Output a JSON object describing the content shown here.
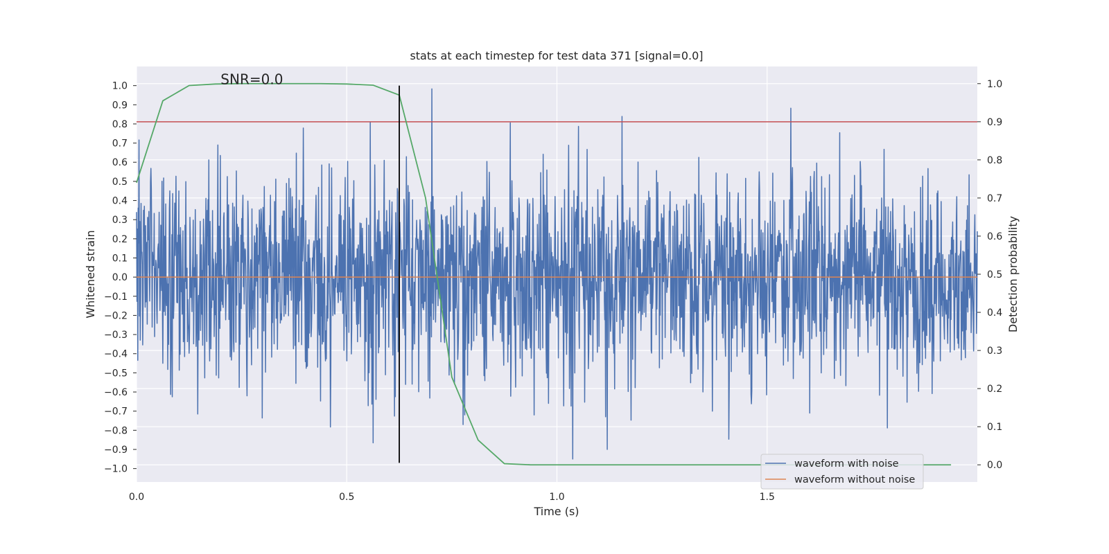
{
  "chart_data": {
    "type": "line",
    "title": "stats at each timestep for test data 371 [signal=0.0]",
    "xlabel": "Time (s)",
    "ylabel": "Whitened strain",
    "y2label": "Detection probability",
    "xlim": [
      0.0,
      2.0
    ],
    "ylim": [
      -1.07,
      1.1
    ],
    "y2lim": [
      -0.045,
      1.045
    ],
    "xticks": [
      0.0,
      0.5,
      1.0,
      1.5
    ],
    "xtick_labels": [
      "0.0",
      "0.5",
      "1.0",
      "1.5"
    ],
    "yticks": [
      -1.0,
      -0.9,
      -0.8,
      -0.7,
      -0.6,
      -0.5,
      -0.4,
      -0.3,
      -0.2,
      -0.1,
      0.0,
      0.1,
      0.2,
      0.3,
      0.4,
      0.5,
      0.6,
      0.7,
      0.8,
      0.9,
      1.0
    ],
    "ytick_labels": [
      "−1.0",
      "−0.9",
      "−0.8",
      "−0.7",
      "−0.6",
      "−0.5",
      "−0.4",
      "−0.3",
      "−0.2",
      "−0.1",
      "0.0",
      "0.1",
      "0.2",
      "0.3",
      "0.4",
      "0.5",
      "0.6",
      "0.7",
      "0.8",
      "0.9",
      "1.0"
    ],
    "y2ticks": [
      0.0,
      0.1,
      0.2,
      0.3,
      0.4,
      0.5,
      0.6,
      0.7,
      0.8,
      0.9,
      1.0
    ],
    "y2tick_labels": [
      "0.0",
      "0.1",
      "0.2",
      "0.3",
      "0.4",
      "0.5",
      "0.6",
      "0.7",
      "0.8",
      "0.9",
      "1.0"
    ],
    "grid": true,
    "annotation": {
      "text": "SNR=0.0",
      "x": 0.2,
      "y": 1.0
    },
    "threshold_line": {
      "axis": "y2",
      "value": 0.9,
      "color": "#c44e52"
    },
    "marker_line": {
      "x": 0.625,
      "y_from": -0.97,
      "y_to": 1.0,
      "color": "#000000"
    },
    "noise_series": {
      "name": "waveform with noise",
      "color": "#4c72b0",
      "x_start": 0.0,
      "x_end": 2.0,
      "samples": 2048,
      "seed": 371,
      "sigma": 0.27,
      "clip": [
        -0.95,
        1.0
      ]
    },
    "clean_series": {
      "name": "waveform without noise",
      "color": "#dd8452",
      "x": [
        0.0,
        2.0
      ],
      "y": [
        0.0,
        0.0
      ]
    },
    "probability_series": {
      "axis": "y2",
      "color": "#55a868",
      "x": [
        0.0,
        0.0625,
        0.125,
        0.1875,
        0.25,
        0.3125,
        0.375,
        0.4375,
        0.5,
        0.5625,
        0.625,
        0.6875,
        0.75,
        0.8125,
        0.875,
        0.9375,
        1.0,
        1.0625,
        1.125,
        1.1875,
        1.25,
        1.3125,
        1.375,
        1.4375,
        1.5,
        1.5625,
        1.625,
        1.6875,
        1.75,
        1.8125,
        1.875,
        1.9375
      ],
      "y": [
        0.74,
        0.955,
        0.995,
        0.999,
        1.0,
        1.0,
        1.0,
        1.0,
        0.999,
        0.996,
        0.97,
        0.7,
        0.23,
        0.065,
        0.003,
        0.0,
        0.0,
        0.0,
        0.0,
        0.0,
        0.0,
        0.0,
        0.0,
        0.0,
        0.0,
        0.0,
        0.0,
        0.0,
        0.0,
        0.0,
        0.0,
        0.0
      ]
    },
    "legend": {
      "placement": "lower-right",
      "entries": [
        "waveform with noise",
        "waveform without noise"
      ]
    }
  }
}
